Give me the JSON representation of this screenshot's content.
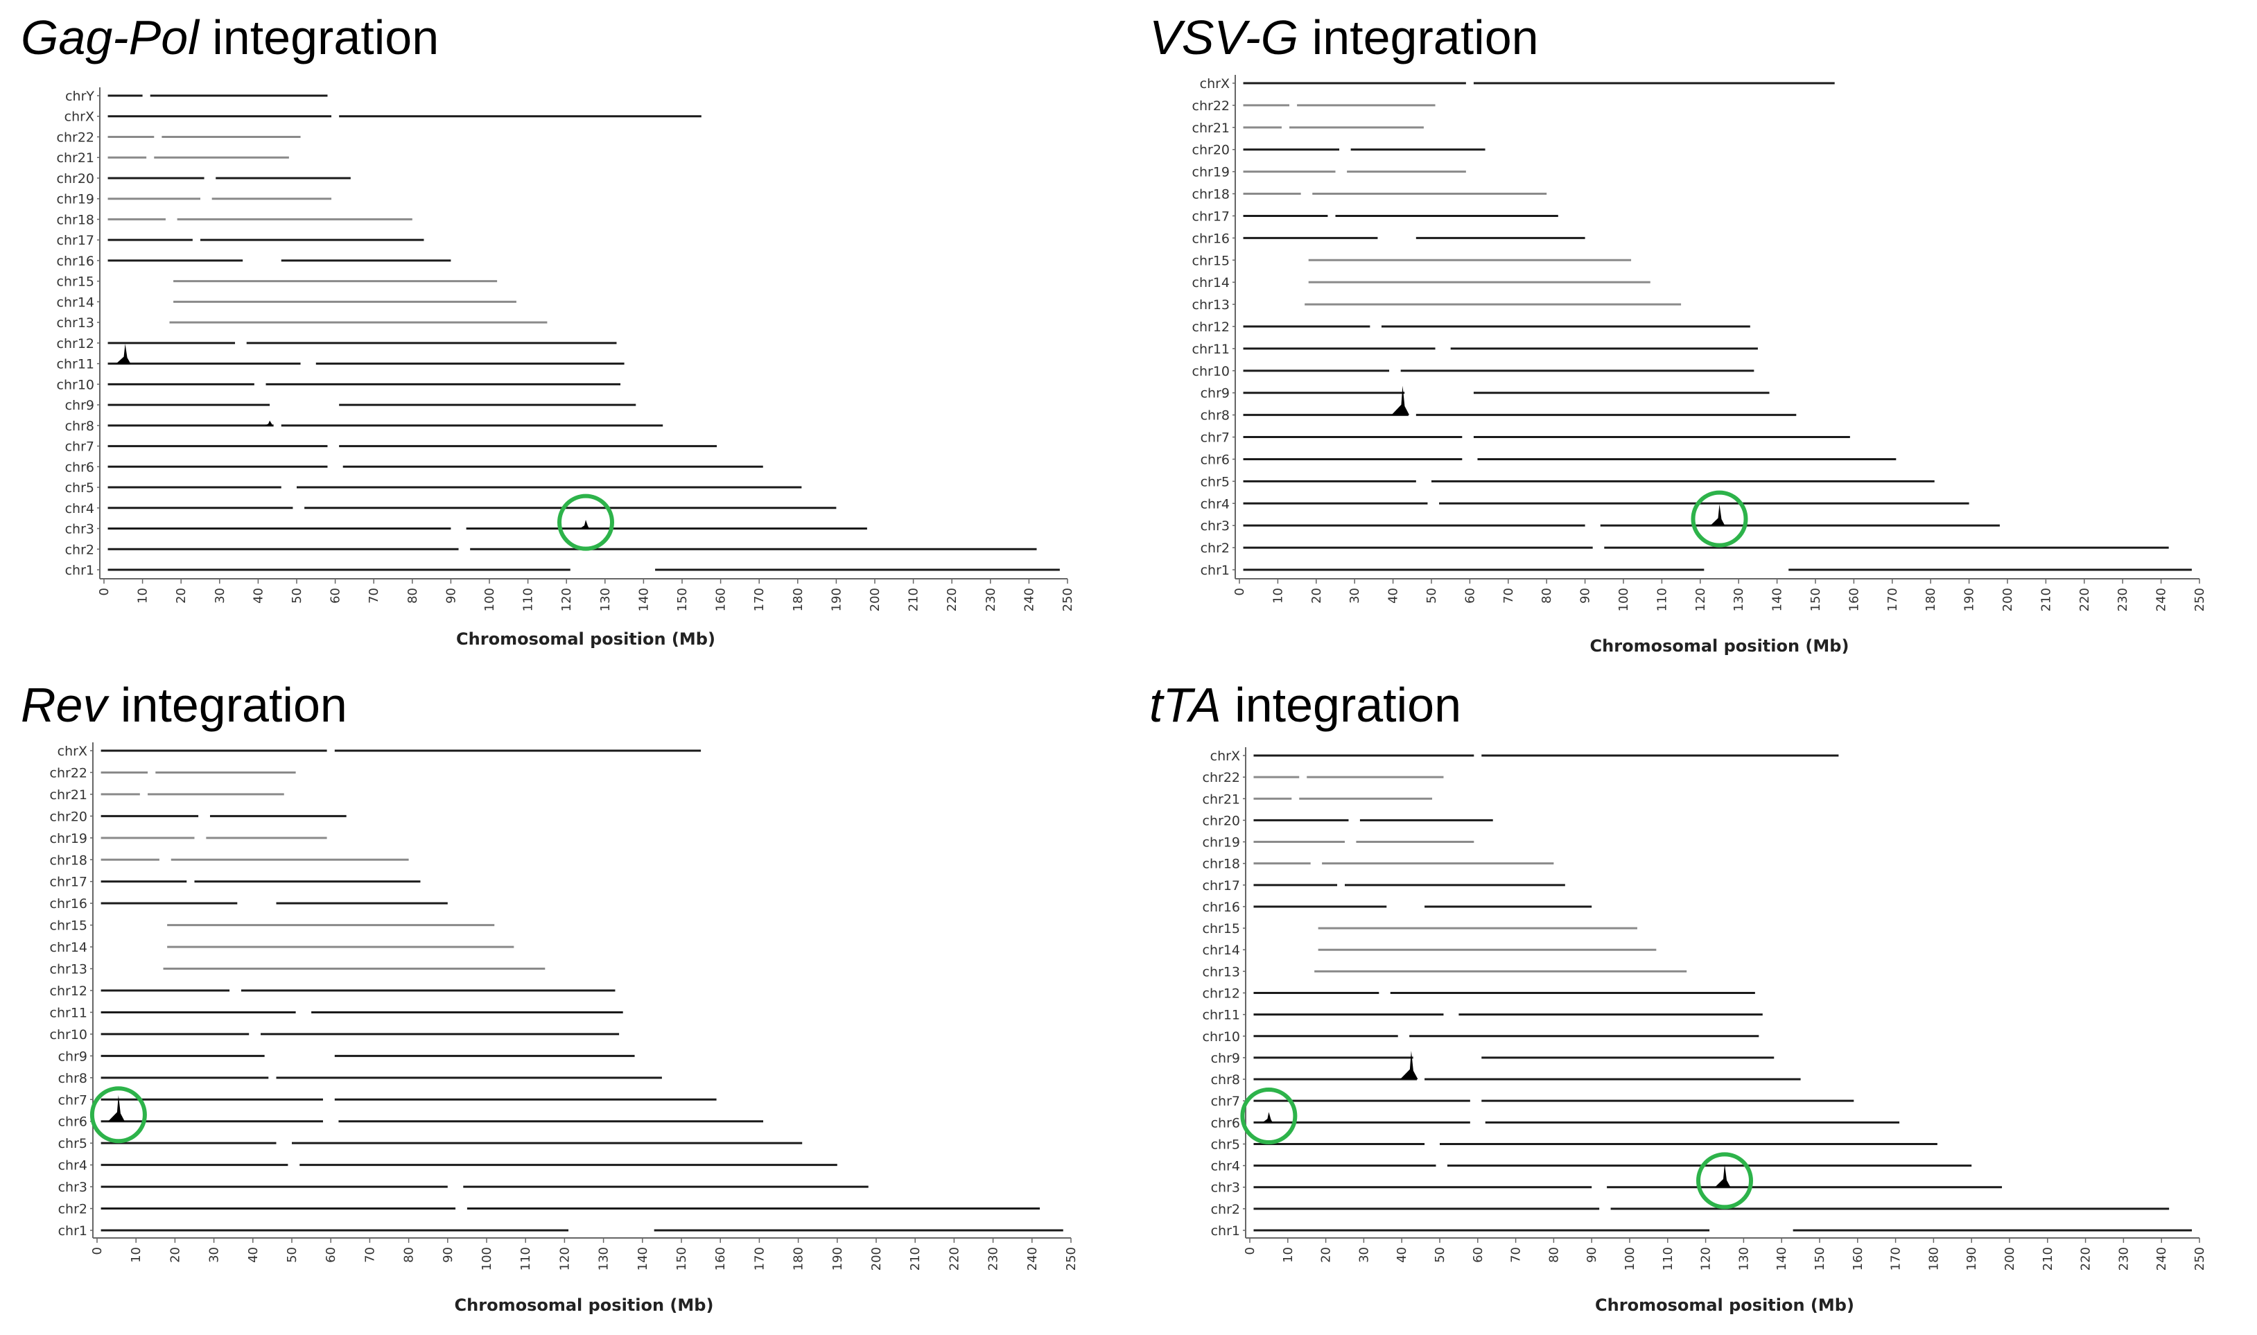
{
  "colors": {
    "track": "#1a1a1a",
    "track_light": "#8a8a8a",
    "circle": "#2db34a",
    "axis": "#666666"
  },
  "chart_data": [
    {
      "type": "scatter",
      "title_gene": "Gag-Pol",
      "title_rest": " integration",
      "xlabel": "Chromosomal position (Mb)",
      "ylabel": "",
      "xlim": [
        0,
        250
      ],
      "xticks": [
        "0",
        "10",
        "20",
        "30",
        "40",
        "50",
        "60",
        "70",
        "80",
        "90",
        "100",
        "110",
        "120",
        "130",
        "140",
        "150",
        "160",
        "170",
        "180",
        "190",
        "200",
        "210",
        "220",
        "230",
        "240",
        "250"
      ],
      "chromosomes": [
        "chrY",
        "chrX",
        "chr22",
        "chr21",
        "chr20",
        "chr19",
        "chr18",
        "chr17",
        "chr16",
        "chr15",
        "chr14",
        "chr13",
        "chr12",
        "chr11",
        "chr10",
        "chr9",
        "chr8",
        "chr7",
        "chr6",
        "chr5",
        "chr4",
        "chr3",
        "chr2",
        "chr1"
      ],
      "chrom_length_mb": [
        58,
        155,
        51,
        48,
        64,
        59,
        80,
        83,
        90,
        102,
        107,
        115,
        133,
        135,
        134,
        138,
        145,
        159,
        171,
        181,
        190,
        198,
        242,
        248
      ],
      "peaks": [
        {
          "chrom": "chr11",
          "pos": 5.5,
          "height": 0.8
        },
        {
          "chrom": "chr8",
          "pos": 43,
          "height": 0.2
        },
        {
          "chrom": "chr3",
          "pos": 125,
          "height": 0.35
        }
      ],
      "highlight_circles": [
        {
          "chrom": "chr3",
          "pos": 125
        }
      ]
    },
    {
      "type": "scatter",
      "title_gene": "VSV-G",
      "title_rest": " integration",
      "xlabel": "Chromosomal position (Mb)",
      "ylabel": "",
      "xlim": [
        0,
        250
      ],
      "xticks": [
        "0",
        "10",
        "20",
        "30",
        "40",
        "50",
        "60",
        "70",
        "80",
        "90",
        "100",
        "110",
        "120",
        "130",
        "140",
        "150",
        "160",
        "170",
        "180",
        "190",
        "200",
        "210",
        "220",
        "230",
        "240",
        "250"
      ],
      "chromosomes": [
        "chrX",
        "chr22",
        "chr21",
        "chr20",
        "chr19",
        "chr18",
        "chr17",
        "chr16",
        "chr15",
        "chr14",
        "chr13",
        "chr12",
        "chr11",
        "chr10",
        "chr9",
        "chr8",
        "chr7",
        "chr6",
        "chr5",
        "chr4",
        "chr3",
        "chr2",
        "chr1"
      ],
      "chrom_length_mb": [
        155,
        51,
        48,
        64,
        59,
        80,
        83,
        90,
        102,
        107,
        115,
        133,
        135,
        134,
        138,
        145,
        159,
        171,
        181,
        190,
        198,
        242,
        248
      ],
      "peaks": [
        {
          "chrom": "chr8",
          "pos": 42.5,
          "height": 1.1
        },
        {
          "chrom": "chr3",
          "pos": 125,
          "height": 0.8
        }
      ],
      "highlight_circles": [
        {
          "chrom": "chr3",
          "pos": 125
        }
      ]
    },
    {
      "type": "scatter",
      "title_gene": "Rev",
      "title_rest": " integration",
      "xlabel": "Chromosomal position (Mb)",
      "ylabel": "",
      "xlim": [
        0,
        250
      ],
      "xticks": [
        "0",
        "10",
        "20",
        "30",
        "40",
        "50",
        "60",
        "70",
        "80",
        "90",
        "100",
        "110",
        "120",
        "130",
        "140",
        "150",
        "160",
        "170",
        "180",
        "190",
        "200",
        "210",
        "220",
        "230",
        "240",
        "250"
      ],
      "chromosomes": [
        "chrX",
        "chr22",
        "chr21",
        "chr20",
        "chr19",
        "chr18",
        "chr17",
        "chr16",
        "chr15",
        "chr14",
        "chr13",
        "chr12",
        "chr11",
        "chr10",
        "chr9",
        "chr8",
        "chr7",
        "chr6",
        "chr5",
        "chr4",
        "chr3",
        "chr2",
        "chr1"
      ],
      "chrom_length_mb": [
        155,
        51,
        48,
        64,
        59,
        80,
        83,
        90,
        102,
        107,
        115,
        133,
        135,
        134,
        138,
        145,
        159,
        171,
        181,
        190,
        198,
        242,
        248
      ],
      "peaks": [
        {
          "chrom": "chr6",
          "pos": 5.5,
          "height": 1.0
        }
      ],
      "highlight_circles": [
        {
          "chrom": "chr6",
          "pos": 5.5
        }
      ]
    },
    {
      "type": "scatter",
      "title_gene": "tTA",
      "title_rest": " integration",
      "xlabel": "Chromosomal position (Mb)",
      "ylabel": "",
      "xlim": [
        0,
        250
      ],
      "xticks": [
        "0",
        "10",
        "20",
        "30",
        "40",
        "50",
        "60",
        "70",
        "80",
        "90",
        "100",
        "110",
        "120",
        "130",
        "140",
        "150",
        "160",
        "170",
        "180",
        "190",
        "200",
        "210",
        "220",
        "230",
        "240",
        "250"
      ],
      "chromosomes": [
        "chrX",
        "chr22",
        "chr21",
        "chr20",
        "chr19",
        "chr18",
        "chr17",
        "chr16",
        "chr15",
        "chr14",
        "chr13",
        "chr12",
        "chr11",
        "chr10",
        "chr9",
        "chr8",
        "chr7",
        "chr6",
        "chr5",
        "chr4",
        "chr3",
        "chr2",
        "chr1"
      ],
      "chrom_length_mb": [
        155,
        51,
        48,
        64,
        59,
        80,
        83,
        90,
        102,
        107,
        115,
        133,
        135,
        134,
        138,
        145,
        159,
        171,
        181,
        190,
        198,
        242,
        248
      ],
      "peaks": [
        {
          "chrom": "chr8",
          "pos": 42.5,
          "height": 1.1
        },
        {
          "chrom": "chr6",
          "pos": 5,
          "height": 0.4
        },
        {
          "chrom": "chr3",
          "pos": 125,
          "height": 0.9
        }
      ],
      "highlight_circles": [
        {
          "chrom": "chr6",
          "pos": 5
        },
        {
          "chrom": "chr3",
          "pos": 125
        }
      ]
    }
  ]
}
